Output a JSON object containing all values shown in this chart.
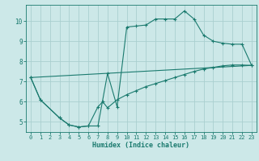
{
  "title": "",
  "xlabel": "Humidex (Indice chaleur)",
  "bg_color": "#cce8e8",
  "grid_color": "#aacfcf",
  "line_color": "#1a7a6e",
  "xlim": [
    -0.5,
    23.5
  ],
  "ylim": [
    4.5,
    10.8
  ],
  "xticks": [
    0,
    1,
    2,
    3,
    4,
    5,
    6,
    7,
    8,
    9,
    10,
    11,
    12,
    13,
    14,
    15,
    16,
    17,
    18,
    19,
    20,
    21,
    22,
    23
  ],
  "yticks": [
    5,
    6,
    7,
    8,
    9,
    10
  ],
  "line1_x": [
    0,
    1,
    3,
    4,
    5,
    6,
    7,
    8,
    9,
    10,
    11,
    12,
    13,
    14,
    15,
    16,
    17,
    18,
    19,
    20,
    21,
    22,
    23
  ],
  "line1_y": [
    7.2,
    6.1,
    5.2,
    4.85,
    4.75,
    4.8,
    4.8,
    7.4,
    5.75,
    9.7,
    9.75,
    9.8,
    10.1,
    10.1,
    10.1,
    10.5,
    10.1,
    9.3,
    9.0,
    8.9,
    8.85,
    8.85,
    7.8
  ],
  "line2_x": [
    0,
    1,
    3,
    4,
    5,
    6,
    7,
    7.5,
    8,
    9,
    10,
    11,
    12,
    13,
    14,
    15,
    16,
    17,
    18,
    19,
    20,
    21,
    22,
    23
  ],
  "line2_y": [
    7.2,
    6.1,
    5.2,
    4.85,
    4.75,
    4.8,
    5.75,
    6.0,
    5.7,
    6.1,
    6.35,
    6.55,
    6.75,
    6.9,
    7.05,
    7.2,
    7.35,
    7.5,
    7.62,
    7.7,
    7.78,
    7.82,
    7.82,
    7.8
  ],
  "line3_x": [
    0,
    23
  ],
  "line3_y": [
    7.2,
    7.8
  ]
}
